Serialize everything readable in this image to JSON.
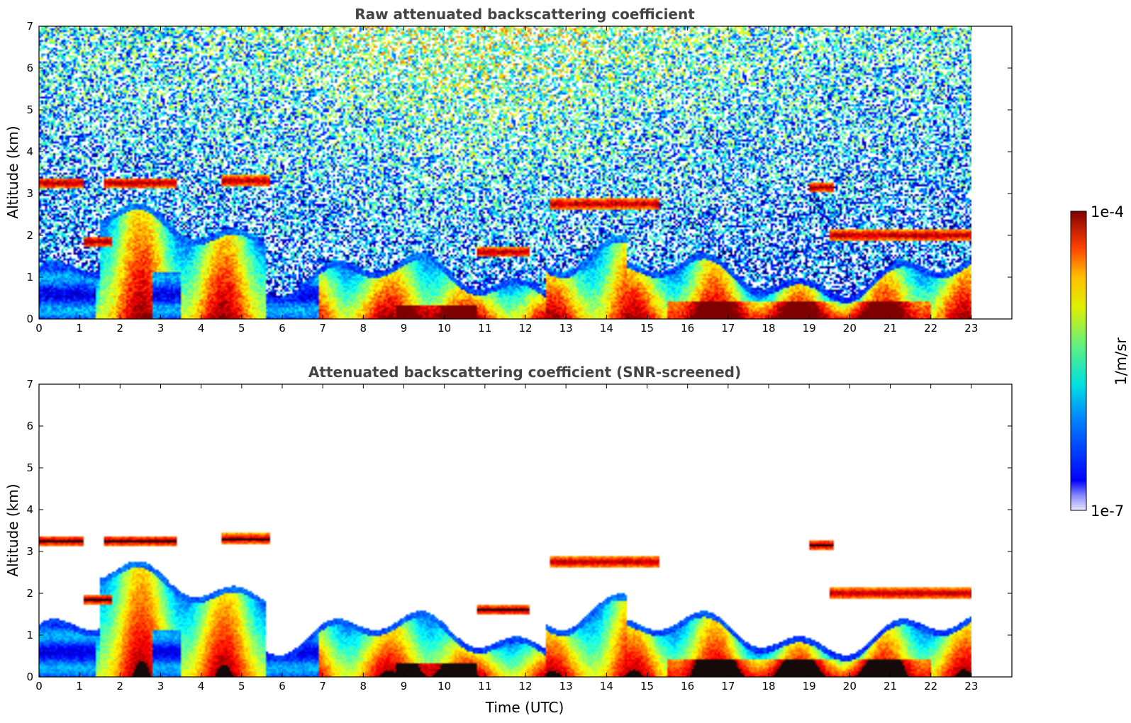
{
  "chart_data": [
    {
      "type": "heatmap",
      "title": "Raw attenuated backscattering coefficient",
      "xlabel": "",
      "ylabel": "Altitude (km)",
      "xlim": [
        0,
        24
      ],
      "ylim": [
        0,
        7
      ],
      "data_extent_x": [
        0,
        23
      ],
      "x_ticks": [
        "0",
        "1",
        "2",
        "3",
        "4",
        "5",
        "6",
        "7",
        "8",
        "9",
        "10",
        "11",
        "12",
        "13",
        "14",
        "15",
        "16",
        "17",
        "18",
        "19",
        "20",
        "21",
        "22",
        "23"
      ],
      "y_ticks": [
        "0",
        "1",
        "2",
        "3",
        "4",
        "5",
        "6",
        "7"
      ],
      "screened": false,
      "features": [
        {
          "kind": "boundary_layer",
          "t0": 0,
          "t1": 23,
          "top_km": [
            0.5,
            1.4
          ]
        },
        {
          "kind": "cloud_layer",
          "t0": 0,
          "t1": 1.1,
          "alt_km": 3.25
        },
        {
          "kind": "cloud_layer",
          "t0": 1.6,
          "t1": 3.4,
          "alt_km": 3.25
        },
        {
          "kind": "cloud_layer",
          "t0": 1.1,
          "t1": 1.8,
          "alt_km": 1.85
        },
        {
          "kind": "cloud_layer",
          "t0": 4.5,
          "t1": 5.7,
          "alt_km": 3.3
        },
        {
          "kind": "cloud_layer",
          "t0": 10.8,
          "t1": 12.1,
          "alt_km": 1.6
        },
        {
          "kind": "cloud_layer",
          "t0": 12.6,
          "t1": 15.3,
          "alt_km": 2.75
        },
        {
          "kind": "cloud_layer",
          "t0": 19.0,
          "t1": 19.6,
          "alt_km": 3.15
        },
        {
          "kind": "cloud_layer",
          "t0": 19.5,
          "t1": 23.0,
          "alt_km": 2.0
        }
      ]
    },
    {
      "type": "heatmap",
      "title": "Attenuated backscattering coefficient (SNR-screened)",
      "xlabel": "Time (UTC)",
      "ylabel": "Altitude (km)",
      "xlim": [
        0,
        24
      ],
      "ylim": [
        0,
        7
      ],
      "data_extent_x": [
        0,
        23
      ],
      "x_ticks": [
        "0",
        "1",
        "2",
        "3",
        "4",
        "5",
        "6",
        "7",
        "8",
        "9",
        "10",
        "11",
        "12",
        "13",
        "14",
        "15",
        "16",
        "17",
        "18",
        "19",
        "20",
        "21",
        "22",
        "23"
      ],
      "y_ticks": [
        "0",
        "1",
        "2",
        "3",
        "4",
        "5",
        "6",
        "7"
      ],
      "screened": true
    }
  ],
  "colorbar": {
    "max_label": "1e-4",
    "min_label": "1e-7",
    "unit_label": "1/m/sr",
    "colormap": "jet",
    "range": [
      1e-07,
      0.0001
    ]
  }
}
